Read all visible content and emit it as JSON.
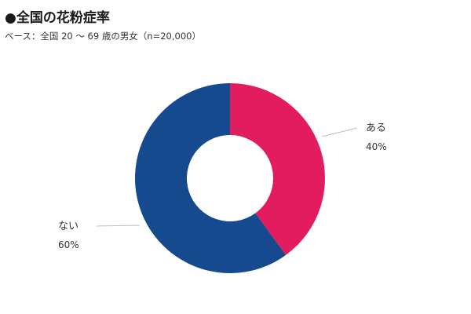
{
  "chart_data": {
    "type": "pie",
    "title": "●全国の花粉症率",
    "subtitle": "ベース：全国 20 ～ 69 歳の男女（n=20,000）",
    "slices": [
      {
        "label": "ある",
        "value": 40,
        "value_label": "40%",
        "color": "#e31c5f"
      },
      {
        "label": "ない",
        "value": 60,
        "value_label": "60%",
        "color": "#164a8f"
      }
    ],
    "donut": true,
    "start": "top",
    "direction": "clockwise",
    "legend": "none",
    "label_placement": "outside-with-leader-lines"
  },
  "colors": {
    "background": "#ffffff",
    "leader_line": "#bfbfbf",
    "label_text": "#333333"
  }
}
